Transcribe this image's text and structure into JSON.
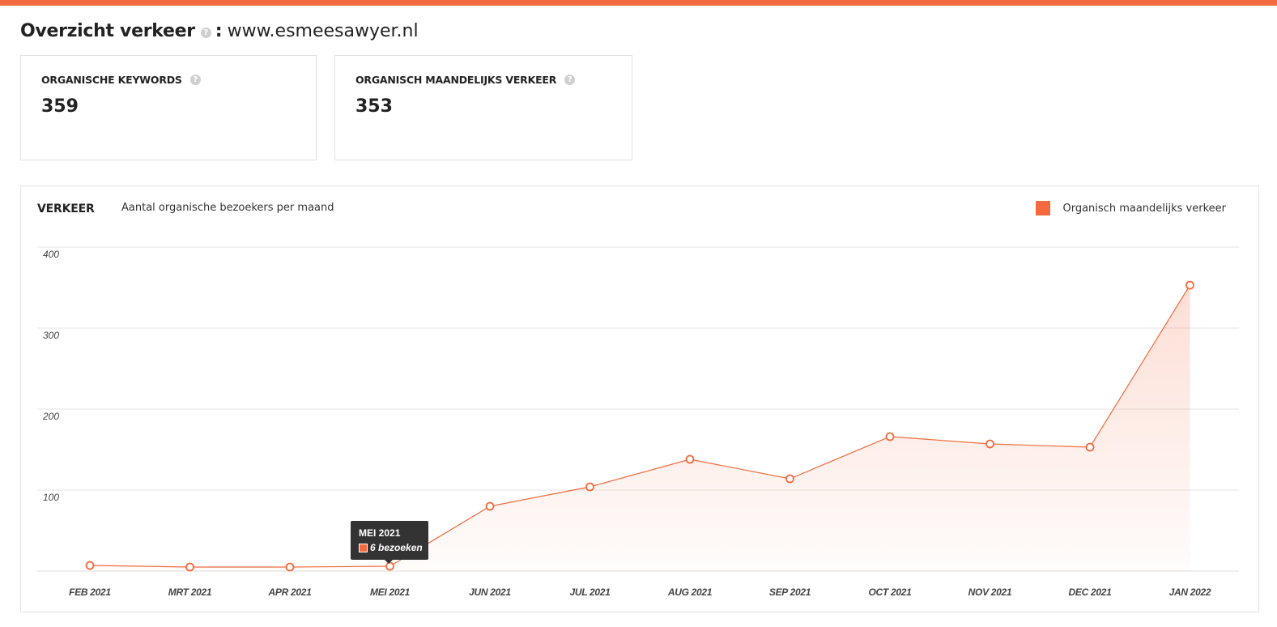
{
  "header": {
    "title": "Overzicht verkeer",
    "colon": ":",
    "domain": "www.esmeesawyer.nl"
  },
  "help_icon": "?",
  "cards": [
    {
      "label": "ORGANISCHE KEYWORDS",
      "value": "359"
    },
    {
      "label": "ORGANISCH MAANDELIJKS VERKEER",
      "value": "353"
    }
  ],
  "panel": {
    "title": "VERKEER",
    "subtitle": "Aantal organische bezoekers per maand",
    "legend_label": "Organisch maandelijks verkeer"
  },
  "tooltip": {
    "title": "MEI 2021",
    "value_text": "6 bezoeken"
  },
  "colors": {
    "accent": "#f26a3d",
    "grid": "#e6e6e6",
    "tooltip_bg": "#333333"
  },
  "chart_data": {
    "type": "area",
    "categories": [
      "FEB 2021",
      "MRT 2021",
      "APR 2021",
      "MEI 2021",
      "JUN 2021",
      "JUL 2021",
      "AUG 2021",
      "SEP 2021",
      "OCT 2021",
      "NOV 2021",
      "DEC 2021",
      "JAN 2022"
    ],
    "series": [
      {
        "name": "Organisch maandelijks verkeer",
        "values": [
          7,
          5,
          5,
          6,
          80,
          104,
          138,
          114,
          166,
          157,
          153,
          353
        ]
      }
    ],
    "y_ticks": [
      100,
      200,
      300,
      400
    ],
    "ylim": [
      0,
      400
    ],
    "grid": true,
    "legend_position": "top-right"
  }
}
